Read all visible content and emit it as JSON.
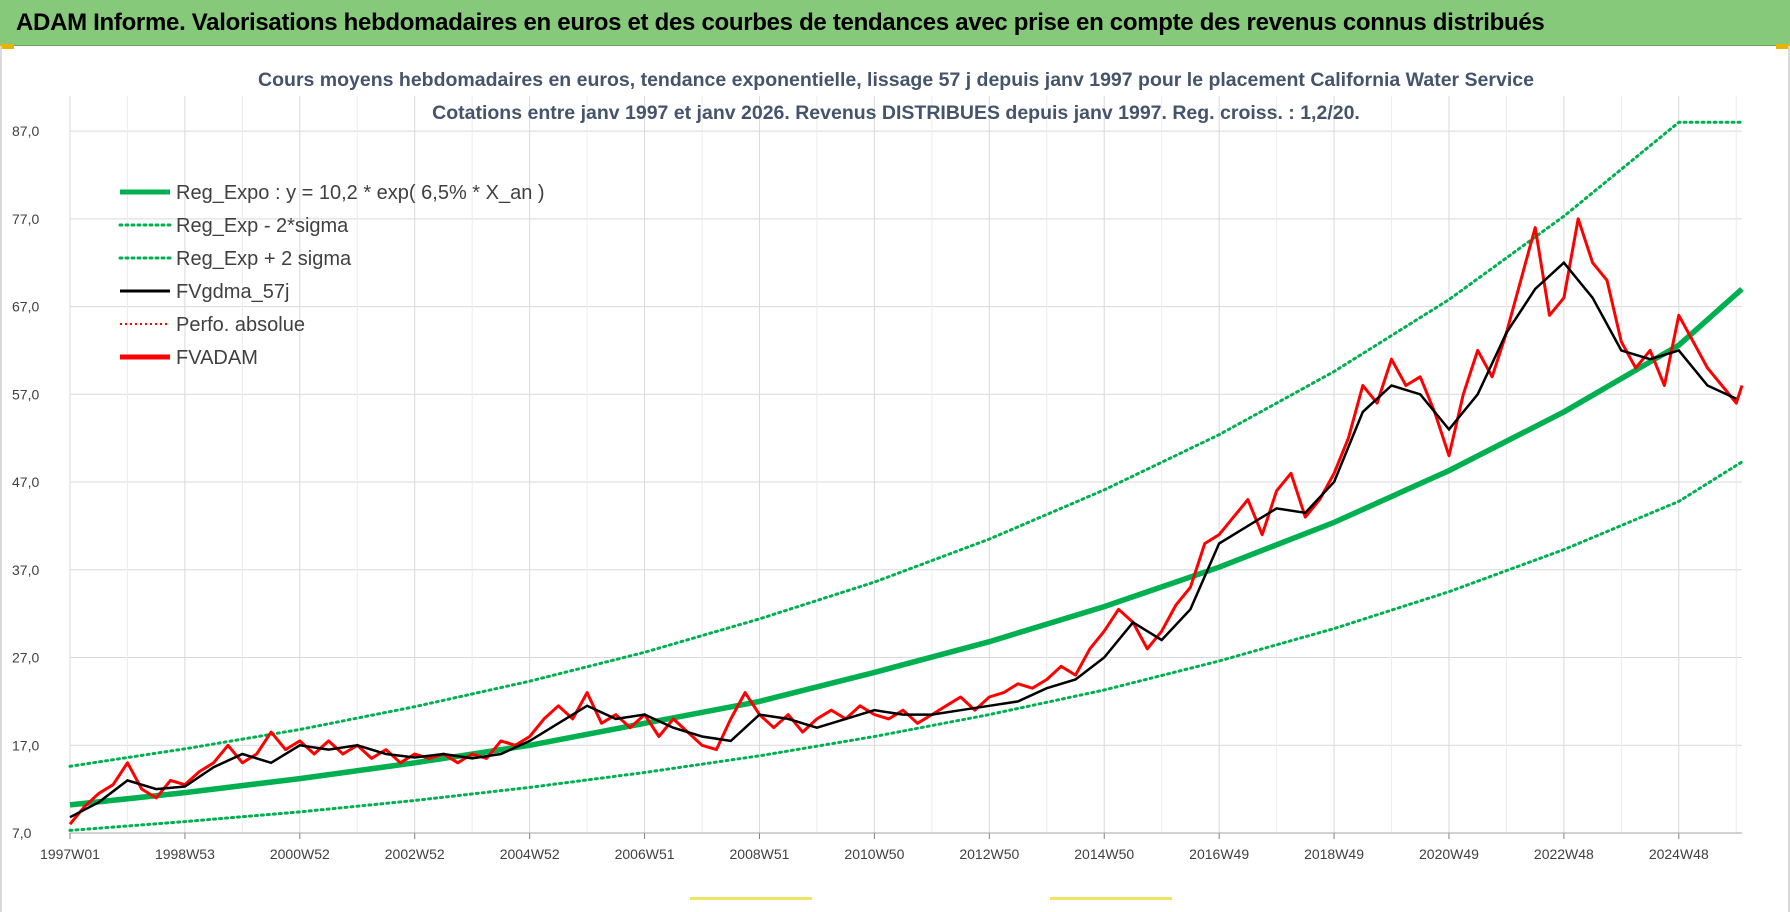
{
  "banner": {
    "title": "ADAM Informe. Valorisations hebdomadaires en euros et des courbes de tendances avec prise en compte des revenus connus distribués"
  },
  "colors": {
    "banner_bg": "#86c97a",
    "trend": "#00b050",
    "band": "#00b050",
    "smooth": "#000000",
    "perf": "#ff0000",
    "price": "#ff0000",
    "grid": "#d9d9d9",
    "title_text": "#44546a"
  },
  "chart_data": {
    "type": "line",
    "title_line1": "Cours moyens hebdomadaires en euros, tendance exponentielle, lissage 57 j depuis janv 1997 pour le placement California Water Service",
    "title_line2": "Cotations entre janv 1997 et janv 2026. Revenus DISTRIBUES depuis janv 1997. Reg. croiss. : 1,2/20.",
    "x_axis": {
      "unit": "year",
      "range": [
        1997.0,
        2026.1
      ],
      "ticks": [
        {
          "label": "1997W01",
          "x": 1997.0
        },
        {
          "label": "1998W53",
          "x": 1999.0
        },
        {
          "label": "2000W52",
          "x": 2001.0
        },
        {
          "label": "2002W52",
          "x": 2003.0
        },
        {
          "label": "2004W52",
          "x": 2005.0
        },
        {
          "label": "2006W51",
          "x": 2007.0
        },
        {
          "label": "2008W51",
          "x": 2009.0
        },
        {
          "label": "2010W50",
          "x": 2011.0
        },
        {
          "label": "2012W50",
          "x": 2013.0
        },
        {
          "label": "2014W50",
          "x": 2015.0
        },
        {
          "label": "2016W49",
          "x": 2017.0
        },
        {
          "label": "2018W49",
          "x": 2019.0
        },
        {
          "label": "2020W49",
          "x": 2021.0
        },
        {
          "label": "2022W48",
          "x": 2023.0
        },
        {
          "label": "2024W48",
          "x": 2025.0
        }
      ]
    },
    "y_axis": {
      "range": [
        7.0,
        91.0
      ],
      "ticks": [
        {
          "label": "7,0",
          "y": 7
        },
        {
          "label": "17,0",
          "y": 17
        },
        {
          "label": "27,0",
          "y": 27
        },
        {
          "label": "37,0",
          "y": 37
        },
        {
          "label": "47,0",
          "y": 47
        },
        {
          "label": "57,0",
          "y": 57
        },
        {
          "label": "67,0",
          "y": 67
        },
        {
          "label": "77,0",
          "y": 77
        },
        {
          "label": "87,0",
          "y": 87
        }
      ]
    },
    "grid": true,
    "legend_position": "top-left",
    "legend": [
      {
        "label": "Reg_Expo : y = 10,2 * exp( 6,5% *  X_an )",
        "color": "#00b050",
        "style": "solid-thick"
      },
      {
        "label": "Reg_Exp - 2*sigma",
        "color": "#00b050",
        "style": "dotted"
      },
      {
        "label": "Reg_Exp + 2 sigma",
        "color": "#00b050",
        "style": "dotted"
      },
      {
        "label": "FVgdma_57j",
        "color": "#000000",
        "style": "solid"
      },
      {
        "label": "Perfo. absolue",
        "color": "#ff0000",
        "style": "dotted-thin"
      },
      {
        "label": "FVADAM",
        "color": "#ff0000",
        "style": "solid-thick"
      }
    ],
    "series": [
      {
        "name": "Reg_Expo : y = 10,2 * exp( 6,5% *  X_an )",
        "x": [
          1997.0,
          1999.0,
          2001.0,
          2003.0,
          2005.0,
          2007.0,
          2009.0,
          2011.0,
          2013.0,
          2015.0,
          2017.0,
          2019.0,
          2021.0,
          2023.0,
          2025.0,
          2026.1
        ],
        "values": [
          10.2,
          11.6,
          13.2,
          15.0,
          17.0,
          19.5,
          22.0,
          25.3,
          28.8,
          32.8,
          37.3,
          42.4,
          48.3,
          55.0,
          62.6,
          69.0
        ]
      },
      {
        "name": "Reg_Exp - 2*sigma",
        "x": [
          1997.0,
          1999.0,
          2001.0,
          2003.0,
          2005.0,
          2007.0,
          2009.0,
          2011.0,
          2013.0,
          2015.0,
          2017.0,
          2019.0,
          2021.0,
          2023.0,
          2025.0,
          2026.1
        ],
        "values": [
          7.3,
          8.3,
          9.4,
          10.7,
          12.2,
          13.9,
          15.8,
          18.0,
          20.5,
          23.3,
          26.6,
          30.3,
          34.5,
          39.3,
          44.8,
          49.3
        ]
      },
      {
        "name": "Reg_Exp + 2 sigma",
        "x": [
          1997.0,
          1999.0,
          2001.0,
          2003.0,
          2005.0,
          2007.0,
          2009.0,
          2011.0,
          2013.0,
          2015.0,
          2017.0,
          2019.0,
          2021.0,
          2023.0,
          2025.0,
          2026.1
        ],
        "values": [
          14.6,
          16.6,
          18.8,
          21.4,
          24.3,
          27.6,
          31.4,
          35.6,
          40.5,
          46.1,
          52.4,
          59.6,
          67.8,
          77.3,
          88.0,
          88.0
        ]
      },
      {
        "name": "FVgdma_57j",
        "x": [
          1997.0,
          1997.5,
          1998.0,
          1998.5,
          1999.0,
          1999.5,
          2000.0,
          2000.5,
          2001.0,
          2001.5,
          2002.0,
          2002.5,
          2003.0,
          2003.5,
          2004.0,
          2004.5,
          2005.0,
          2005.5,
          2006.0,
          2006.5,
          2007.0,
          2007.5,
          2008.0,
          2008.5,
          2009.0,
          2009.5,
          2010.0,
          2010.5,
          2011.0,
          2011.5,
          2012.0,
          2012.5,
          2013.0,
          2013.5,
          2014.0,
          2014.5,
          2015.0,
          2015.5,
          2016.0,
          2016.5,
          2017.0,
          2017.5,
          2018.0,
          2018.5,
          2019.0,
          2019.5,
          2020.0,
          2020.5,
          2021.0,
          2021.5,
          2022.0,
          2022.5,
          2023.0,
          2023.5,
          2024.0,
          2024.5,
          2025.0,
          2025.5,
          2026.0
        ],
        "values": [
          8.8,
          10.5,
          13.0,
          12.0,
          12.3,
          14.5,
          16.0,
          15.0,
          17.0,
          16.5,
          17.0,
          16.0,
          15.6,
          16.0,
          15.5,
          16.0,
          17.5,
          19.5,
          21.5,
          20.0,
          20.5,
          19.0,
          18.0,
          17.5,
          20.5,
          20.0,
          19.0,
          20.0,
          21.0,
          20.5,
          20.5,
          21.0,
          21.5,
          22.0,
          23.5,
          24.5,
          27.0,
          31.0,
          29.0,
          32.5,
          40.0,
          42.0,
          44.0,
          43.5,
          47.0,
          55.0,
          58.0,
          57.0,
          53.0,
          57.0,
          64.0,
          69.0,
          72.0,
          68.0,
          62.0,
          61.0,
          62.0,
          58.0,
          56.5
        ]
      },
      {
        "name": "FVADAM",
        "x": [
          1997.0,
          1997.25,
          1997.5,
          1997.75,
          1998.0,
          1998.25,
          1998.5,
          1998.75,
          1999.0,
          1999.25,
          1999.5,
          1999.75,
          2000.0,
          2000.25,
          2000.5,
          2000.75,
          2001.0,
          2001.25,
          2001.5,
          2001.75,
          2002.0,
          2002.25,
          2002.5,
          2002.75,
          2003.0,
          2003.25,
          2003.5,
          2003.75,
          2004.0,
          2004.25,
          2004.5,
          2004.75,
          2005.0,
          2005.25,
          2005.5,
          2005.75,
          2006.0,
          2006.25,
          2006.5,
          2006.75,
          2007.0,
          2007.25,
          2007.5,
          2007.75,
          2008.0,
          2008.25,
          2008.5,
          2008.75,
          2009.0,
          2009.25,
          2009.5,
          2009.75,
          2010.0,
          2010.25,
          2010.5,
          2010.75,
          2011.0,
          2011.25,
          2011.5,
          2011.75,
          2012.0,
          2012.25,
          2012.5,
          2012.75,
          2013.0,
          2013.25,
          2013.5,
          2013.75,
          2014.0,
          2014.25,
          2014.5,
          2014.75,
          2015.0,
          2015.25,
          2015.5,
          2015.75,
          2016.0,
          2016.25,
          2016.5,
          2016.75,
          2017.0,
          2017.25,
          2017.5,
          2017.75,
          2018.0,
          2018.25,
          2018.5,
          2018.75,
          2019.0,
          2019.25,
          2019.5,
          2019.75,
          2020.0,
          2020.25,
          2020.5,
          2020.75,
          2021.0,
          2021.25,
          2021.5,
          2021.75,
          2022.0,
          2022.25,
          2022.5,
          2022.75,
          2023.0,
          2023.25,
          2023.5,
          2023.75,
          2024.0,
          2024.25,
          2024.5,
          2024.75,
          2025.0,
          2025.25,
          2025.5,
          2025.75,
          2026.0,
          2026.1
        ],
        "values": [
          8.0,
          10.0,
          11.5,
          12.5,
          15.0,
          12.0,
          11.0,
          13.0,
          12.5,
          14.0,
          15.0,
          17.0,
          15.0,
          16.0,
          18.5,
          16.5,
          17.5,
          16.0,
          17.5,
          16.0,
          17.0,
          15.5,
          16.5,
          15.0,
          16.0,
          15.5,
          16.0,
          15.0,
          16.0,
          15.5,
          17.5,
          17.0,
          18.0,
          20.0,
          21.5,
          20.0,
          23.0,
          19.5,
          20.5,
          19.0,
          20.5,
          18.0,
          20.0,
          18.5,
          17.0,
          16.5,
          20.0,
          23.0,
          20.5,
          19.0,
          20.5,
          18.5,
          20.0,
          21.0,
          20.0,
          21.5,
          20.5,
          20.0,
          21.0,
          19.5,
          20.5,
          21.5,
          22.5,
          21.0,
          22.5,
          23.0,
          24.0,
          23.5,
          24.5,
          26.0,
          25.0,
          28.0,
          30.0,
          32.5,
          31.0,
          28.0,
          30.0,
          33.0,
          35.0,
          40.0,
          41.0,
          43.0,
          45.0,
          41.0,
          46.0,
          48.0,
          43.0,
          45.0,
          48.0,
          52.0,
          58.0,
          56.0,
          61.0,
          58.0,
          59.0,
          55.0,
          50.0,
          57.0,
          62.0,
          59.0,
          64.0,
          70.0,
          76.0,
          66.0,
          68.0,
          77.0,
          72.0,
          70.0,
          63.0,
          60.0,
          62.0,
          58.0,
          66.0,
          63.0,
          60.0,
          58.0,
          56.0,
          58.0
        ]
      }
    ]
  }
}
